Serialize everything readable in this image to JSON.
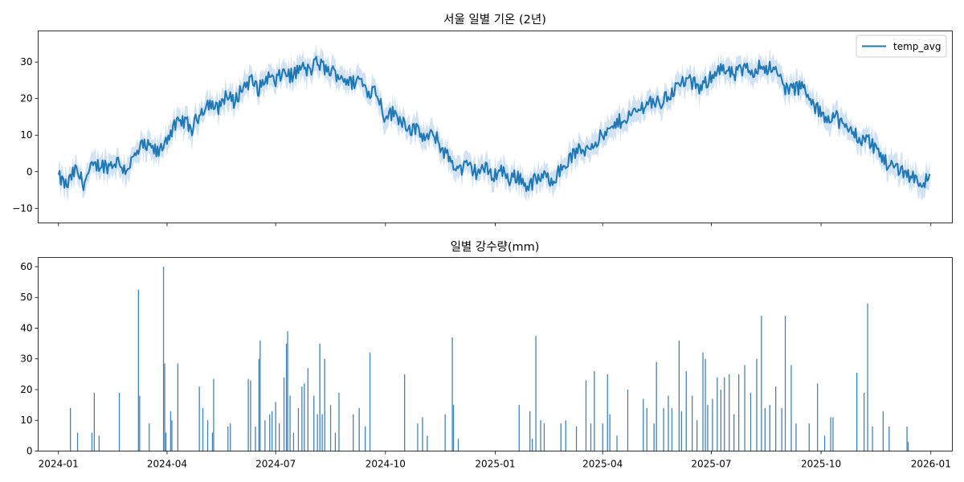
{
  "chart_data": [
    {
      "type": "line",
      "title": "서울 일별 기온 (2년)",
      "xlabel": "",
      "ylabel": "",
      "x_range": [
        "2023-12-15",
        "2026-01-19"
      ],
      "ylim": [
        -14,
        38.5
      ],
      "y_ticks": [
        -10,
        0,
        10,
        20,
        30
      ],
      "x_ticks": [
        "2024-01",
        "2024-04",
        "2024-07",
        "2024-10",
        "2025-01",
        "2025-04",
        "2025-07",
        "2025-10",
        "2026-01"
      ],
      "grid": false,
      "legend": "top-right",
      "band": "light shaded range around line",
      "series": [
        {
          "name": "temp_avg",
          "color": "#1f77b4",
          "band_color": "#c6dbef",
          "points": [
            [
              "2024-01-01",
              -1.5
            ],
            [
              "2024-01-08",
              -4.0
            ],
            [
              "2024-01-15",
              0.5
            ],
            [
              "2024-01-22",
              -3.0
            ],
            [
              "2024-01-29",
              1.0
            ],
            [
              "2024-02-05",
              2.0
            ],
            [
              "2024-02-12",
              1.5
            ],
            [
              "2024-02-19",
              3.0
            ],
            [
              "2024-02-26",
              0.5
            ],
            [
              "2024-03-04",
              3.5
            ],
            [
              "2024-03-11",
              7.0
            ],
            [
              "2024-03-18",
              6.5
            ],
            [
              "2024-03-25",
              5.0
            ],
            [
              "2024-04-01",
              9.5
            ],
            [
              "2024-04-08",
              12.5
            ],
            [
              "2024-04-15",
              14.0
            ],
            [
              "2024-04-22",
              11.5
            ],
            [
              "2024-04-29",
              16.5
            ],
            [
              "2024-05-06",
              19.0
            ],
            [
              "2024-05-13",
              17.0
            ],
            [
              "2024-05-20",
              21.0
            ],
            [
              "2024-05-27",
              19.0
            ],
            [
              "2024-06-03",
              23.0
            ],
            [
              "2024-06-10",
              25.0
            ],
            [
              "2024-06-17",
              22.5
            ],
            [
              "2024-06-24",
              26.0
            ],
            [
              "2024-07-01",
              24.5
            ],
            [
              "2024-07-08",
              27.5
            ],
            [
              "2024-07-15",
              26.0
            ],
            [
              "2024-07-22",
              28.5
            ],
            [
              "2024-07-29",
              27.5
            ],
            [
              "2024-08-05",
              30.0
            ],
            [
              "2024-08-12",
              28.0
            ],
            [
              "2024-08-19",
              27.0
            ],
            [
              "2024-08-26",
              26.0
            ],
            [
              "2024-09-02",
              24.0
            ],
            [
              "2024-09-09",
              25.5
            ],
            [
              "2024-09-16",
              22.0
            ],
            [
              "2024-09-23",
              22.5
            ],
            [
              "2024-09-30",
              15.5
            ],
            [
              "2024-10-07",
              16.0
            ],
            [
              "2024-10-14",
              14.5
            ],
            [
              "2024-10-21",
              12.0
            ],
            [
              "2024-10-28",
              11.0
            ],
            [
              "2024-11-04",
              9.0
            ],
            [
              "2024-11-11",
              10.0
            ],
            [
              "2024-11-18",
              6.0
            ],
            [
              "2024-11-25",
              3.0
            ],
            [
              "2024-12-02",
              0.5
            ],
            [
              "2024-12-09",
              1.5
            ],
            [
              "2024-12-16",
              0.0
            ],
            [
              "2024-12-23",
              1.0
            ],
            [
              "2024-12-30",
              -1.0
            ],
            [
              "2025-01-06",
              0.5
            ],
            [
              "2025-01-13",
              -2.0
            ],
            [
              "2025-01-20",
              -1.0
            ],
            [
              "2025-01-27",
              -4.0
            ],
            [
              "2025-02-03",
              -2.5
            ],
            [
              "2025-02-10",
              -1.5
            ],
            [
              "2025-02-17",
              -2.0
            ],
            [
              "2025-02-24",
              0.0
            ],
            [
              "2025-03-03",
              3.0
            ],
            [
              "2025-03-10",
              5.5
            ],
            [
              "2025-03-17",
              6.0
            ],
            [
              "2025-03-24",
              8.0
            ],
            [
              "2025-03-31",
              9.5
            ],
            [
              "2025-04-07",
              11.0
            ],
            [
              "2025-04-14",
              13.5
            ],
            [
              "2025-04-21",
              15.0
            ],
            [
              "2025-04-28",
              16.0
            ],
            [
              "2025-05-05",
              18.0
            ],
            [
              "2025-05-12",
              19.5
            ],
            [
              "2025-05-19",
              18.5
            ],
            [
              "2025-05-26",
              21.0
            ],
            [
              "2025-06-02",
              23.0
            ],
            [
              "2025-06-09",
              25.0
            ],
            [
              "2025-06-16",
              24.0
            ],
            [
              "2025-06-23",
              22.5
            ],
            [
              "2025-06-30",
              26.0
            ],
            [
              "2025-07-07",
              28.5
            ],
            [
              "2025-07-14",
              27.0
            ],
            [
              "2025-07-21",
              26.5
            ],
            [
              "2025-07-28",
              28.0
            ],
            [
              "2025-08-04",
              27.5
            ],
            [
              "2025-08-11",
              29.0
            ],
            [
              "2025-08-18",
              28.5
            ],
            [
              "2025-08-25",
              27.0
            ],
            [
              "2025-09-01",
              23.0
            ],
            [
              "2025-09-08",
              22.5
            ],
            [
              "2025-09-15",
              23.5
            ],
            [
              "2025-09-22",
              19.0
            ],
            [
              "2025-09-29",
              16.5
            ],
            [
              "2025-10-06",
              15.0
            ],
            [
              "2025-10-13",
              15.5
            ],
            [
              "2025-10-20",
              12.0
            ],
            [
              "2025-10-27",
              11.0
            ],
            [
              "2025-11-03",
              9.0
            ],
            [
              "2025-11-10",
              8.5
            ],
            [
              "2025-11-17",
              6.0
            ],
            [
              "2025-11-24",
              2.5
            ],
            [
              "2025-12-01",
              1.5
            ],
            [
              "2025-12-08",
              0.5
            ],
            [
              "2025-12-15",
              -1.0
            ],
            [
              "2025-12-22",
              -2.5
            ],
            [
              "2025-12-31",
              -2.5
            ]
          ]
        }
      ]
    },
    {
      "type": "bar",
      "title": "일별 강수량(mm)",
      "xlabel": "",
      "ylabel": "",
      "x_range": [
        "2023-12-15",
        "2026-01-19"
      ],
      "ylim": [
        0,
        63
      ],
      "y_ticks": [
        0,
        10,
        20,
        30,
        40,
        50,
        60
      ],
      "x_ticks": [
        "2024-01",
        "2024-04",
        "2024-07",
        "2024-10",
        "2025-01",
        "2025-04",
        "2025-07",
        "2025-10",
        "2026-01"
      ],
      "grid": false,
      "series": [
        {
          "name": "",
          "color": "#4682b4",
          "points": [
            [
              "2024-01-11",
              14
            ],
            [
              "2024-01-17",
              6
            ],
            [
              "2024-01-29",
              6
            ],
            [
              "2024-01-31",
              19
            ],
            [
              "2024-02-04",
              5
            ],
            [
              "2024-02-21",
              19
            ],
            [
              "2024-03-08",
              52.5
            ],
            [
              "2024-03-09",
              18
            ],
            [
              "2024-03-17",
              9
            ],
            [
              "2024-03-29",
              60
            ],
            [
              "2024-03-30",
              28.5
            ],
            [
              "2024-03-31",
              6
            ],
            [
              "2024-04-04",
              13
            ],
            [
              "2024-04-05",
              10
            ],
            [
              "2024-04-10",
              28.5
            ],
            [
              "2024-04-28",
              21
            ],
            [
              "2024-05-01",
              14
            ],
            [
              "2024-05-05",
              10
            ],
            [
              "2024-05-09",
              6
            ],
            [
              "2024-05-10",
              23.5
            ],
            [
              "2024-05-22",
              8
            ],
            [
              "2024-05-24",
              9
            ],
            [
              "2024-06-08",
              23.5
            ],
            [
              "2024-06-10",
              23
            ],
            [
              "2024-06-14",
              8
            ],
            [
              "2024-06-17",
              30
            ],
            [
              "2024-06-18",
              36
            ],
            [
              "2024-06-22",
              10
            ],
            [
              "2024-06-26",
              12
            ],
            [
              "2024-06-28",
              13
            ],
            [
              "2024-07-01",
              16
            ],
            [
              "2024-07-04",
              9
            ],
            [
              "2024-07-08",
              24
            ],
            [
              "2024-07-10",
              35
            ],
            [
              "2024-07-11",
              39
            ],
            [
              "2024-07-13",
              18
            ],
            [
              "2024-07-16",
              6
            ],
            [
              "2024-07-20",
              14
            ],
            [
              "2024-07-23",
              21
            ],
            [
              "2024-07-25",
              22
            ],
            [
              "2024-07-28",
              27
            ],
            [
              "2024-08-02",
              18
            ],
            [
              "2024-08-05",
              12
            ],
            [
              "2024-08-07",
              35
            ],
            [
              "2024-08-09",
              12
            ],
            [
              "2024-08-11",
              30
            ],
            [
              "2024-08-16",
              15
            ],
            [
              "2024-08-20",
              6
            ],
            [
              "2024-08-23",
              19
            ],
            [
              "2024-09-04",
              12
            ],
            [
              "2024-09-09",
              14
            ],
            [
              "2024-09-14",
              8
            ],
            [
              "2024-09-18",
              32
            ],
            [
              "2024-10-17",
              25
            ],
            [
              "2024-10-28",
              9
            ],
            [
              "2024-11-01",
              11
            ],
            [
              "2024-11-05",
              5
            ],
            [
              "2024-11-20",
              12
            ],
            [
              "2024-11-26",
              37
            ],
            [
              "2024-11-27",
              15
            ],
            [
              "2024-12-01",
              4
            ],
            [
              "2025-01-21",
              15
            ],
            [
              "2025-01-30",
              13
            ],
            [
              "2025-02-01",
              4
            ],
            [
              "2025-02-04",
              37.5
            ],
            [
              "2025-02-08",
              10
            ],
            [
              "2025-02-11",
              9
            ],
            [
              "2025-02-25",
              9
            ],
            [
              "2025-03-01",
              10
            ],
            [
              "2025-03-10",
              8
            ],
            [
              "2025-03-18",
              23
            ],
            [
              "2025-03-22",
              9
            ],
            [
              "2025-03-25",
              26
            ],
            [
              "2025-04-01",
              9
            ],
            [
              "2025-04-05",
              25
            ],
            [
              "2025-04-07",
              12
            ],
            [
              "2025-04-13",
              5
            ],
            [
              "2025-04-22",
              20
            ],
            [
              "2025-05-05",
              17
            ],
            [
              "2025-05-08",
              14
            ],
            [
              "2025-05-14",
              9
            ],
            [
              "2025-05-16",
              29
            ],
            [
              "2025-05-22",
              14
            ],
            [
              "2025-05-26",
              18
            ],
            [
              "2025-05-29",
              14
            ],
            [
              "2025-06-04",
              36
            ],
            [
              "2025-06-06",
              13
            ],
            [
              "2025-06-10",
              26
            ],
            [
              "2025-06-15",
              18
            ],
            [
              "2025-06-19",
              10
            ],
            [
              "2025-06-24",
              32
            ],
            [
              "2025-06-26",
              30
            ],
            [
              "2025-06-28",
              15
            ],
            [
              "2025-07-02",
              17
            ],
            [
              "2025-07-06",
              24
            ],
            [
              "2025-07-09",
              20
            ],
            [
              "2025-07-12",
              24
            ],
            [
              "2025-07-16",
              25
            ],
            [
              "2025-07-20",
              12
            ],
            [
              "2025-07-24",
              25
            ],
            [
              "2025-07-29",
              28
            ],
            [
              "2025-08-03",
              19
            ],
            [
              "2025-08-08",
              30
            ],
            [
              "2025-08-12",
              44
            ],
            [
              "2025-08-15",
              14
            ],
            [
              "2025-08-19",
              15
            ],
            [
              "2025-08-24",
              21
            ],
            [
              "2025-08-29",
              14
            ],
            [
              "2025-09-01",
              44
            ],
            [
              "2025-09-06",
              28
            ],
            [
              "2025-09-10",
              9
            ],
            [
              "2025-09-21",
              9
            ],
            [
              "2025-09-28",
              22
            ],
            [
              "2025-10-04",
              5
            ],
            [
              "2025-10-09",
              11
            ],
            [
              "2025-10-11",
              11
            ],
            [
              "2025-10-31",
              25.5
            ],
            [
              "2025-11-06",
              19
            ],
            [
              "2025-11-09",
              48
            ],
            [
              "2025-11-13",
              8
            ],
            [
              "2025-11-22",
              13
            ],
            [
              "2025-11-27",
              8
            ],
            [
              "2025-12-12",
              8
            ],
            [
              "2025-12-13",
              3
            ]
          ]
        }
      ]
    }
  ]
}
